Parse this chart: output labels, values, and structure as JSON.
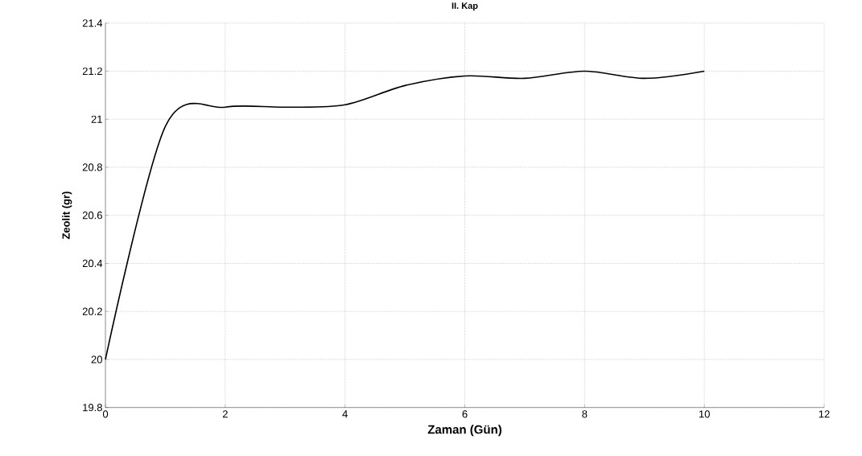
{
  "chart_data": {
    "type": "line",
    "title": "II. Kap",
    "xlabel": "Zaman (Gün)",
    "ylabel": "Zeolit (gr)",
    "x": [
      0,
      1,
      2,
      3,
      4,
      5,
      6,
      7,
      8,
      9,
      10
    ],
    "series": [
      {
        "color": "#000000",
        "values": [
          20.0,
          20.97,
          21.05,
          21.05,
          21.06,
          21.14,
          21.18,
          21.17,
          21.2,
          21.17,
          21.2
        ]
      }
    ],
    "xlim": [
      0,
      12
    ],
    "xticks": [
      0,
      2,
      4,
      6,
      8,
      10,
      12
    ],
    "ylim": [
      19.8,
      21.4
    ],
    "yticks": [
      19.8,
      20,
      20.2,
      20.4,
      20.6,
      20.8,
      21,
      21.2,
      21.4
    ],
    "grid": true,
    "marker": "none",
    "line_style": "solid"
  }
}
